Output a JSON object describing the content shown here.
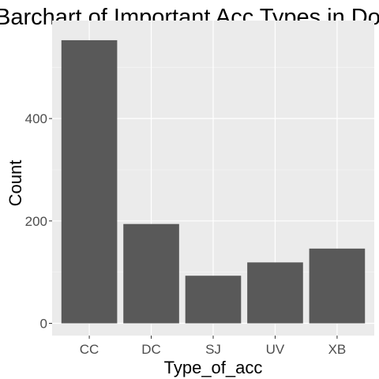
{
  "chart_data": {
    "type": "bar",
    "title": "Barchart of Important Acc Types in Do",
    "xlabel": "Type_of_acc",
    "ylabel": "Count",
    "categories": [
      "CC",
      "DC",
      "SJ",
      "UV",
      "XB"
    ],
    "values": [
      553,
      194,
      93,
      119,
      146
    ],
    "ylim": [
      0,
      553
    ],
    "yticks": [
      0,
      200,
      400
    ],
    "grid": true,
    "legend": "none",
    "colors": {
      "bar": "#595959",
      "panel": "#ebebeb",
      "grid_major": "#ffffff",
      "grid_minor": "#f5f5f5"
    }
  }
}
